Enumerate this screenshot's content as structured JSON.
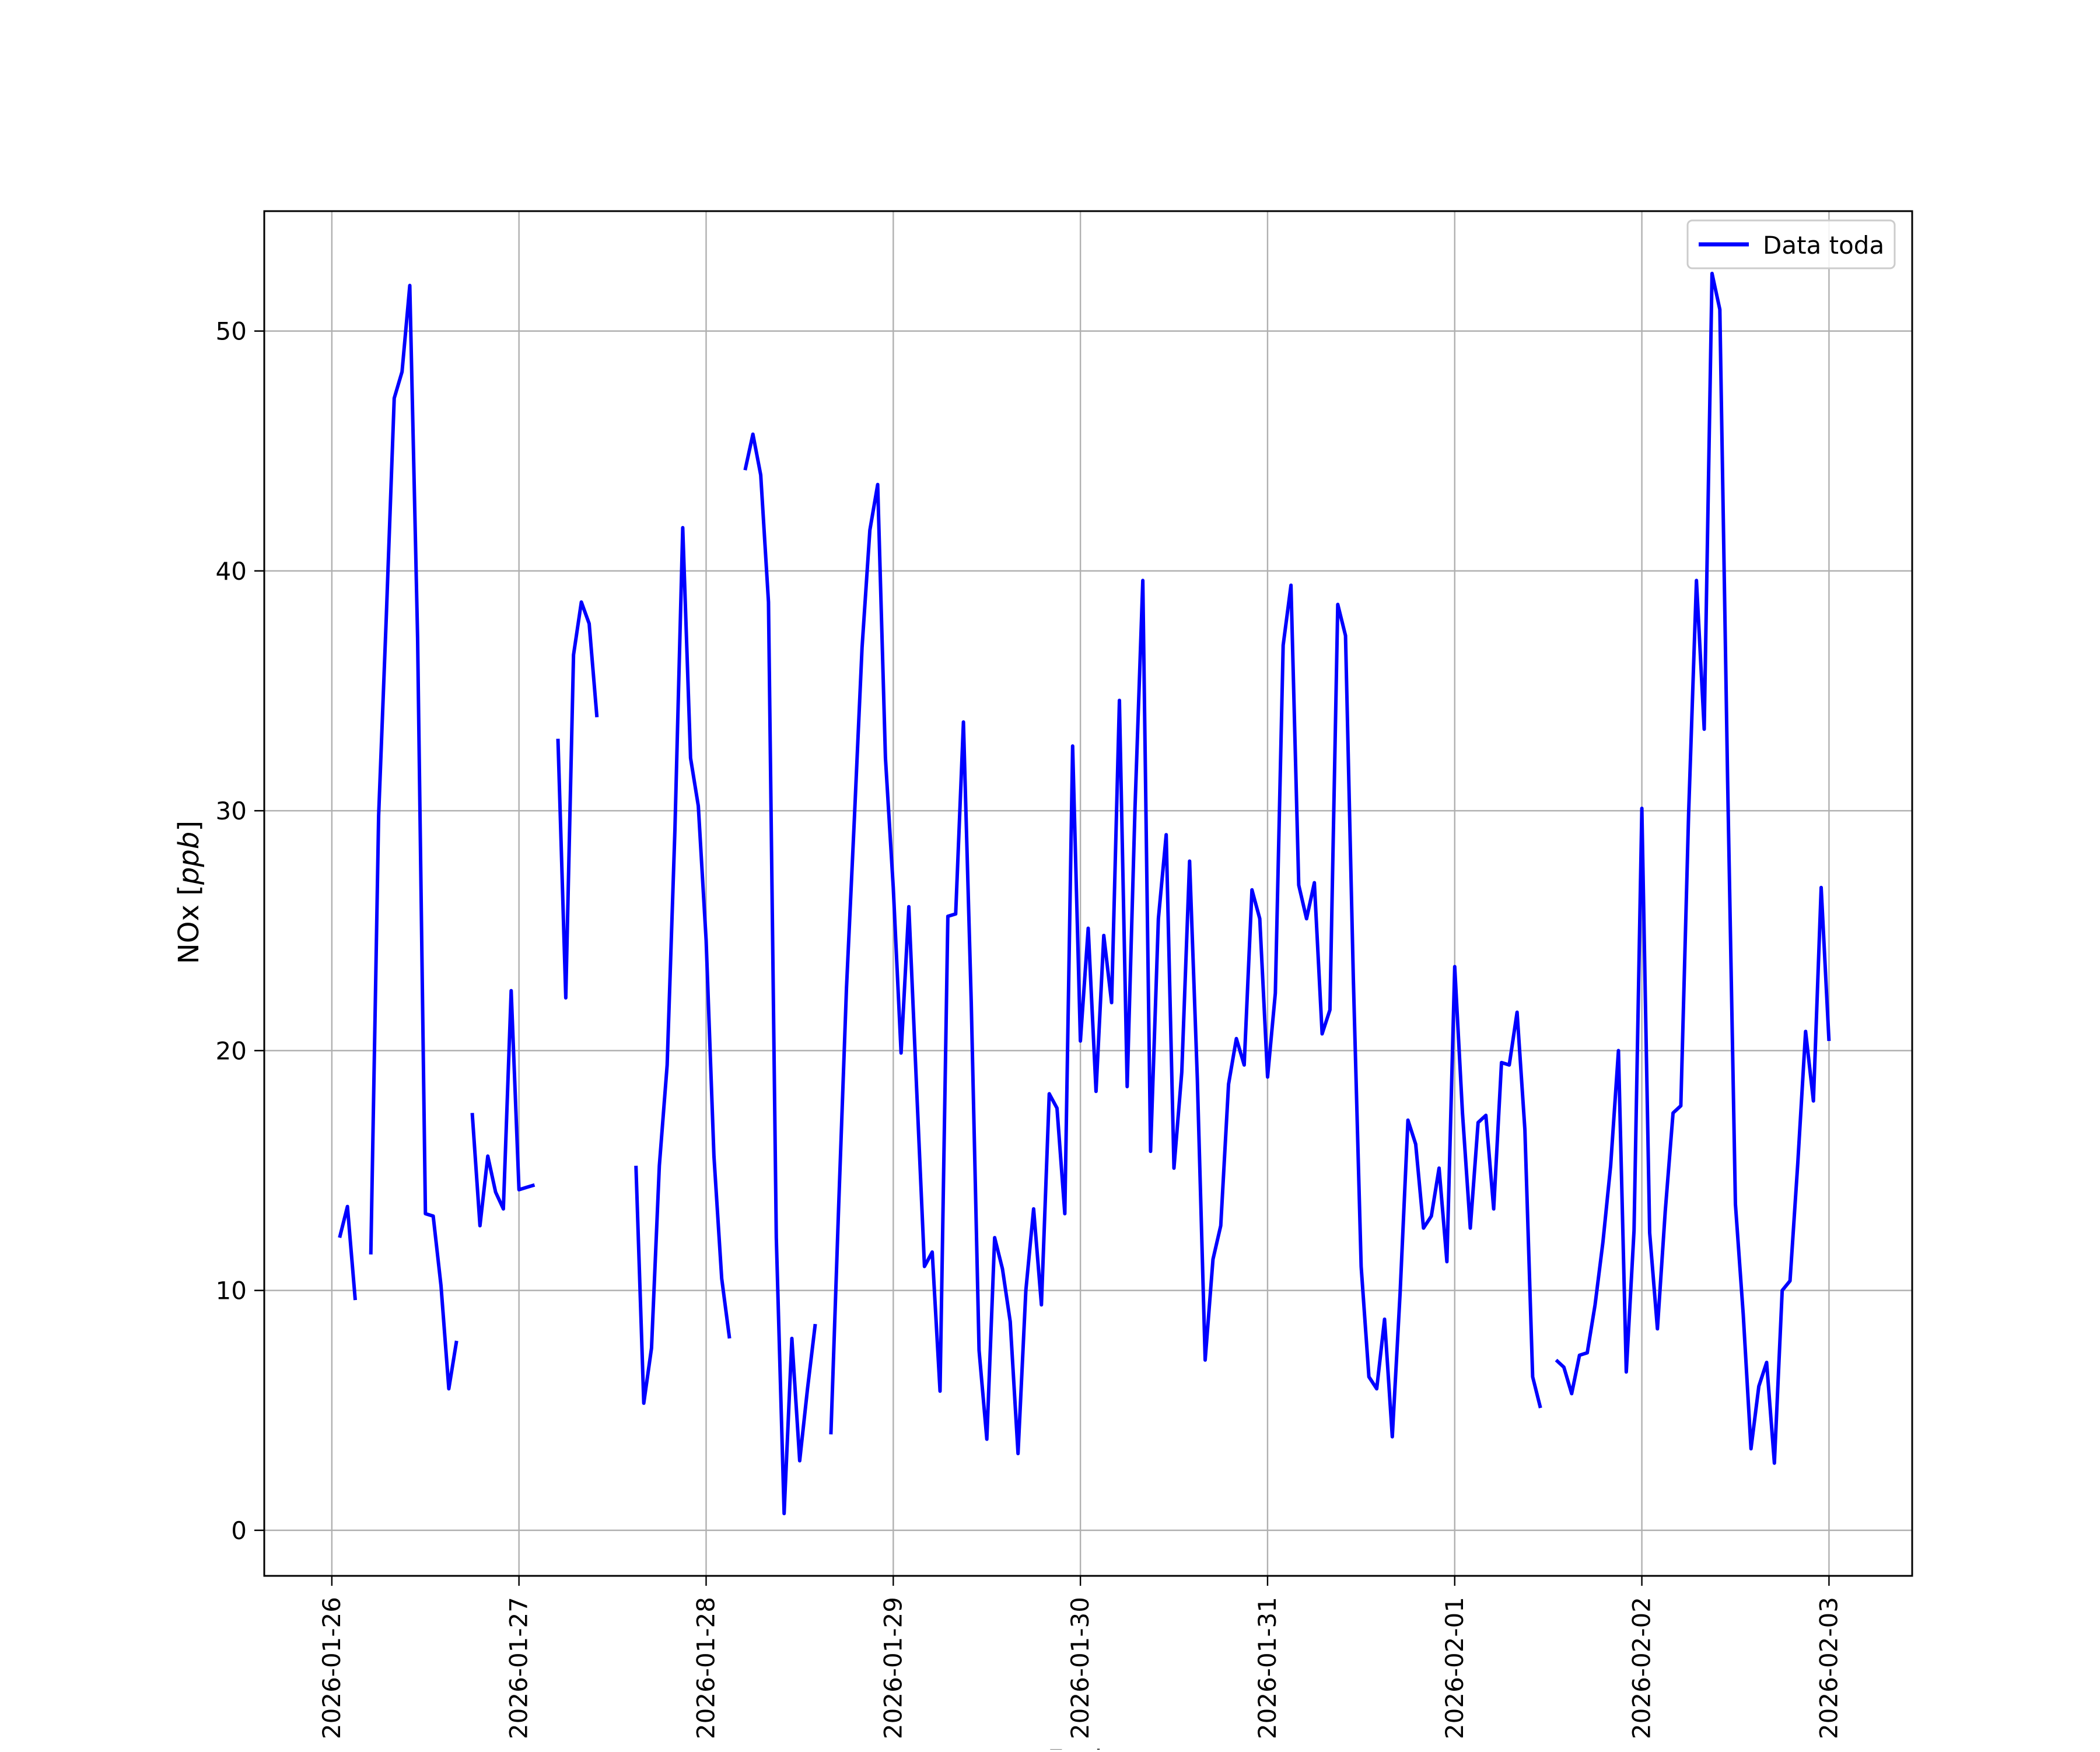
{
  "chart_data": {
    "type": "line",
    "title": "",
    "xlabel": "Fecha",
    "ylabel": "NOx [ppb]",
    "ylabel_parts": {
      "main": "NOx [",
      "unit": "ppb",
      "close": "]"
    },
    "xlim": [
      "2026-01-25T15:20",
      "2026-02-03T10:40"
    ],
    "ylim": [
      -1.9,
      55.0
    ],
    "x_ticks": [
      "2026-01-26",
      "2026-01-27",
      "2026-01-28",
      "2026-01-29",
      "2026-01-30",
      "2026-01-31",
      "2026-02-01",
      "2026-02-02",
      "2026-02-03"
    ],
    "y_ticks": [
      0,
      10,
      20,
      30,
      40,
      50
    ],
    "grid": true,
    "legend_position": "upper right",
    "series": [
      {
        "name": "Data toda",
        "color": "#0000ff",
        "points": [
          [
            "2026-01-26T01:00",
            12.2
          ],
          [
            "2026-01-26T02:00",
            13.5
          ],
          [
            "2026-01-26T03:00",
            9.6
          ],
          [
            "2026-01-26T04:00",
            null
          ],
          [
            "2026-01-26T05:00",
            11.5
          ],
          [
            "2026-01-26T06:00",
            29.8
          ],
          [
            "2026-01-26T07:00",
            38.2
          ],
          [
            "2026-01-26T08:00",
            47.2
          ],
          [
            "2026-01-26T09:00",
            48.3
          ],
          [
            "2026-01-26T10:00",
            51.9
          ],
          [
            "2026-01-26T11:00",
            37.2
          ],
          [
            "2026-01-26T12:00",
            13.2
          ],
          [
            "2026-01-26T13:00",
            13.1
          ],
          [
            "2026-01-26T14:00",
            10.2
          ],
          [
            "2026-01-26T15:00",
            5.9
          ],
          [
            "2026-01-26T16:00",
            7.9
          ],
          [
            "2026-01-26T17:00",
            null
          ],
          [
            "2026-01-26T18:00",
            17.4
          ],
          [
            "2026-01-26T19:00",
            12.7
          ],
          [
            "2026-01-26T20:00",
            15.6
          ],
          [
            "2026-01-26T21:00",
            14.1
          ],
          [
            "2026-01-26T22:00",
            13.4
          ],
          [
            "2026-01-26T23:00",
            22.5
          ],
          [
            "2026-01-27T00:00",
            14.2
          ],
          [
            "2026-01-27T01:00",
            14.3
          ],
          [
            "2026-01-27T02:00",
            14.4
          ],
          [
            "2026-01-27T03:00",
            null
          ],
          [
            "2026-01-27T05:00",
            33.0
          ],
          [
            "2026-01-27T06:00",
            22.2
          ],
          [
            "2026-01-27T07:00",
            36.5
          ],
          [
            "2026-01-27T08:00",
            38.7
          ],
          [
            "2026-01-27T09:00",
            37.8
          ],
          [
            "2026-01-27T10:00",
            33.9
          ],
          [
            "2026-01-27T11:00",
            null
          ],
          [
            "2026-01-27T15:00",
            15.2
          ],
          [
            "2026-01-27T16:00",
            5.3
          ],
          [
            "2026-01-27T17:00",
            7.6
          ],
          [
            "2026-01-27T18:00",
            15.2
          ],
          [
            "2026-01-27T19:00",
            19.4
          ],
          [
            "2026-01-27T20:00",
            29.2
          ],
          [
            "2026-01-27T21:00",
            41.8
          ],
          [
            "2026-01-27T22:00",
            32.2
          ],
          [
            "2026-01-27T23:00",
            30.2
          ],
          [
            "2026-01-28T00:00",
            24.6
          ],
          [
            "2026-01-28T01:00",
            15.6
          ],
          [
            "2026-01-28T02:00",
            10.5
          ],
          [
            "2026-01-28T03:00",
            8.0
          ],
          [
            "2026-01-28T04:00",
            null
          ],
          [
            "2026-01-28T05:00",
            44.2
          ],
          [
            "2026-01-28T06:00",
            45.7
          ],
          [
            "2026-01-28T07:00",
            44.0
          ],
          [
            "2026-01-28T08:00",
            38.7
          ],
          [
            "2026-01-28T09:00",
            12.2
          ],
          [
            "2026-01-28T10:00",
            0.7
          ],
          [
            "2026-01-28T11:00",
            8.0
          ],
          [
            "2026-01-28T12:00",
            2.9
          ],
          [
            "2026-01-28T13:00",
            5.9
          ],
          [
            "2026-01-28T14:00",
            8.6
          ],
          [
            "2026-01-28T15:00",
            null
          ],
          [
            "2026-01-28T16:00",
            4.0
          ],
          [
            "2026-01-28T17:00",
            13.5
          ],
          [
            "2026-01-28T18:00",
            22.6
          ],
          [
            "2026-01-28T19:00",
            29.6
          ],
          [
            "2026-01-28T20:00",
            36.8
          ],
          [
            "2026-01-28T21:00",
            41.7
          ],
          [
            "2026-01-28T22:00",
            43.6
          ],
          [
            "2026-01-28T23:00",
            32.2
          ],
          [
            "2026-01-29T00:00",
            26.8
          ],
          [
            "2026-01-29T01:00",
            19.9
          ],
          [
            "2026-01-29T02:00",
            26.0
          ],
          [
            "2026-01-29T03:00",
            18.4
          ],
          [
            "2026-01-29T04:00",
            11.0
          ],
          [
            "2026-01-29T05:00",
            11.6
          ],
          [
            "2026-01-29T06:00",
            5.8
          ],
          [
            "2026-01-29T07:00",
            25.6
          ],
          [
            "2026-01-29T08:00",
            25.7
          ],
          [
            "2026-01-29T09:00",
            33.7
          ],
          [
            "2026-01-29T10:00",
            22.0
          ],
          [
            "2026-01-29T11:00",
            7.5
          ],
          [
            "2026-01-29T12:00",
            3.8
          ],
          [
            "2026-01-29T13:00",
            12.2
          ],
          [
            "2026-01-29T14:00",
            10.9
          ],
          [
            "2026-01-29T15:00",
            8.7
          ],
          [
            "2026-01-29T16:00",
            3.2
          ],
          [
            "2026-01-29T17:00",
            10.0
          ],
          [
            "2026-01-29T18:00",
            13.4
          ],
          [
            "2026-01-29T19:00",
            9.4
          ],
          [
            "2026-01-29T20:00",
            18.2
          ],
          [
            "2026-01-29T21:00",
            17.6
          ],
          [
            "2026-01-29T22:00",
            13.2
          ],
          [
            "2026-01-29T23:00",
            32.7
          ],
          [
            "2026-01-30T00:00",
            20.4
          ],
          [
            "2026-01-30T01:00",
            25.1
          ],
          [
            "2026-01-30T02:00",
            18.3
          ],
          [
            "2026-01-30T03:00",
            24.8
          ],
          [
            "2026-01-30T04:00",
            22.0
          ],
          [
            "2026-01-30T05:00",
            34.6
          ],
          [
            "2026-01-30T06:00",
            18.5
          ],
          [
            "2026-01-30T07:00",
            30.1
          ],
          [
            "2026-01-30T08:00",
            39.6
          ],
          [
            "2026-01-30T09:00",
            15.8
          ],
          [
            "2026-01-30T10:00",
            25.5
          ],
          [
            "2026-01-30T11:00",
            29.0
          ],
          [
            "2026-01-30T12:00",
            15.1
          ],
          [
            "2026-01-30T13:00",
            19.1
          ],
          [
            "2026-01-30T14:00",
            27.9
          ],
          [
            "2026-01-30T15:00",
            18.8
          ],
          [
            "2026-01-30T16:00",
            7.1
          ],
          [
            "2026-01-30T17:00",
            11.3
          ],
          [
            "2026-01-30T18:00",
            12.7
          ],
          [
            "2026-01-30T19:00",
            18.6
          ],
          [
            "2026-01-30T20:00",
            20.5
          ],
          [
            "2026-01-30T21:00",
            19.4
          ],
          [
            "2026-01-30T22:00",
            26.7
          ],
          [
            "2026-01-30T23:00",
            25.5
          ],
          [
            "2026-01-31T00:00",
            18.9
          ],
          [
            "2026-01-31T01:00",
            22.4
          ],
          [
            "2026-01-31T02:00",
            36.9
          ],
          [
            "2026-01-31T03:00",
            39.4
          ],
          [
            "2026-01-31T04:00",
            26.9
          ],
          [
            "2026-01-31T05:00",
            25.5
          ],
          [
            "2026-01-31T06:00",
            27.0
          ],
          [
            "2026-01-31T07:00",
            20.7
          ],
          [
            "2026-01-31T08:00",
            21.7
          ],
          [
            "2026-01-31T09:00",
            38.6
          ],
          [
            "2026-01-31T10:00",
            37.3
          ],
          [
            "2026-01-31T11:00",
            23.0
          ],
          [
            "2026-01-31T12:00",
            11.0
          ],
          [
            "2026-01-31T13:00",
            6.4
          ],
          [
            "2026-01-31T14:00",
            5.9
          ],
          [
            "2026-01-31T15:00",
            8.8
          ],
          [
            "2026-01-31T16:00",
            3.9
          ],
          [
            "2026-01-31T17:00",
            9.9
          ],
          [
            "2026-01-31T18:00",
            17.1
          ],
          [
            "2026-01-31T19:00",
            16.1
          ],
          [
            "2026-01-31T20:00",
            12.6
          ],
          [
            "2026-01-31T21:00",
            13.1
          ],
          [
            "2026-01-31T22:00",
            15.1
          ],
          [
            "2026-01-31T23:00",
            11.2
          ],
          [
            "2026-02-01T00:00",
            23.5
          ],
          [
            "2026-02-01T01:00",
            17.4
          ],
          [
            "2026-02-01T02:00",
            12.6
          ],
          [
            "2026-02-01T03:00",
            17.0
          ],
          [
            "2026-02-01T04:00",
            17.3
          ],
          [
            "2026-02-01T05:00",
            13.4
          ],
          [
            "2026-02-01T06:00",
            19.5
          ],
          [
            "2026-02-01T07:00",
            19.4
          ],
          [
            "2026-02-01T08:00",
            21.6
          ],
          [
            "2026-02-01T09:00",
            16.7
          ],
          [
            "2026-02-01T10:00",
            6.4
          ],
          [
            "2026-02-01T11:00",
            5.1
          ],
          [
            "2026-02-01T12:00",
            null
          ],
          [
            "2026-02-01T13:00",
            7.1
          ],
          [
            "2026-02-01T14:00",
            6.8
          ],
          [
            "2026-02-01T15:00",
            5.7
          ],
          [
            "2026-02-01T16:00",
            7.3
          ],
          [
            "2026-02-01T17:00",
            7.4
          ],
          [
            "2026-02-01T18:00",
            9.4
          ],
          [
            "2026-02-01T19:00",
            12.0
          ],
          [
            "2026-02-01T20:00",
            15.2
          ],
          [
            "2026-02-01T21:00",
            20.0
          ],
          [
            "2026-02-01T22:00",
            6.6
          ],
          [
            "2026-02-01T23:00",
            12.5
          ],
          [
            "2026-02-02T00:00",
            30.1
          ],
          [
            "2026-02-02T01:00",
            12.4
          ],
          [
            "2026-02-02T02:00",
            8.4
          ],
          [
            "2026-02-02T03:00",
            13.3
          ],
          [
            "2026-02-02T04:00",
            17.4
          ],
          [
            "2026-02-02T05:00",
            17.7
          ],
          [
            "2026-02-02T06:00",
            29.9
          ],
          [
            "2026-02-02T07:00",
            39.6
          ],
          [
            "2026-02-02T08:00",
            33.4
          ],
          [
            "2026-02-02T09:00",
            52.4
          ],
          [
            "2026-02-02T10:00",
            50.9
          ],
          [
            "2026-02-02T11:00",
            31.3
          ],
          [
            "2026-02-02T12:00",
            13.6
          ],
          [
            "2026-02-02T13:00",
            9.0
          ],
          [
            "2026-02-02T14:00",
            3.4
          ],
          [
            "2026-02-02T15:00",
            6.0
          ],
          [
            "2026-02-02T16:00",
            7.0
          ],
          [
            "2026-02-02T17:00",
            2.8
          ],
          [
            "2026-02-02T18:00",
            10.0
          ],
          [
            "2026-02-02T19:00",
            10.4
          ],
          [
            "2026-02-02T20:00",
            15.3
          ],
          [
            "2026-02-02T21:00",
            20.8
          ],
          [
            "2026-02-02T22:00",
            17.9
          ],
          [
            "2026-02-02T23:00",
            26.8
          ],
          [
            "2026-02-03T00:00",
            20.4
          ]
        ]
      }
    ]
  }
}
